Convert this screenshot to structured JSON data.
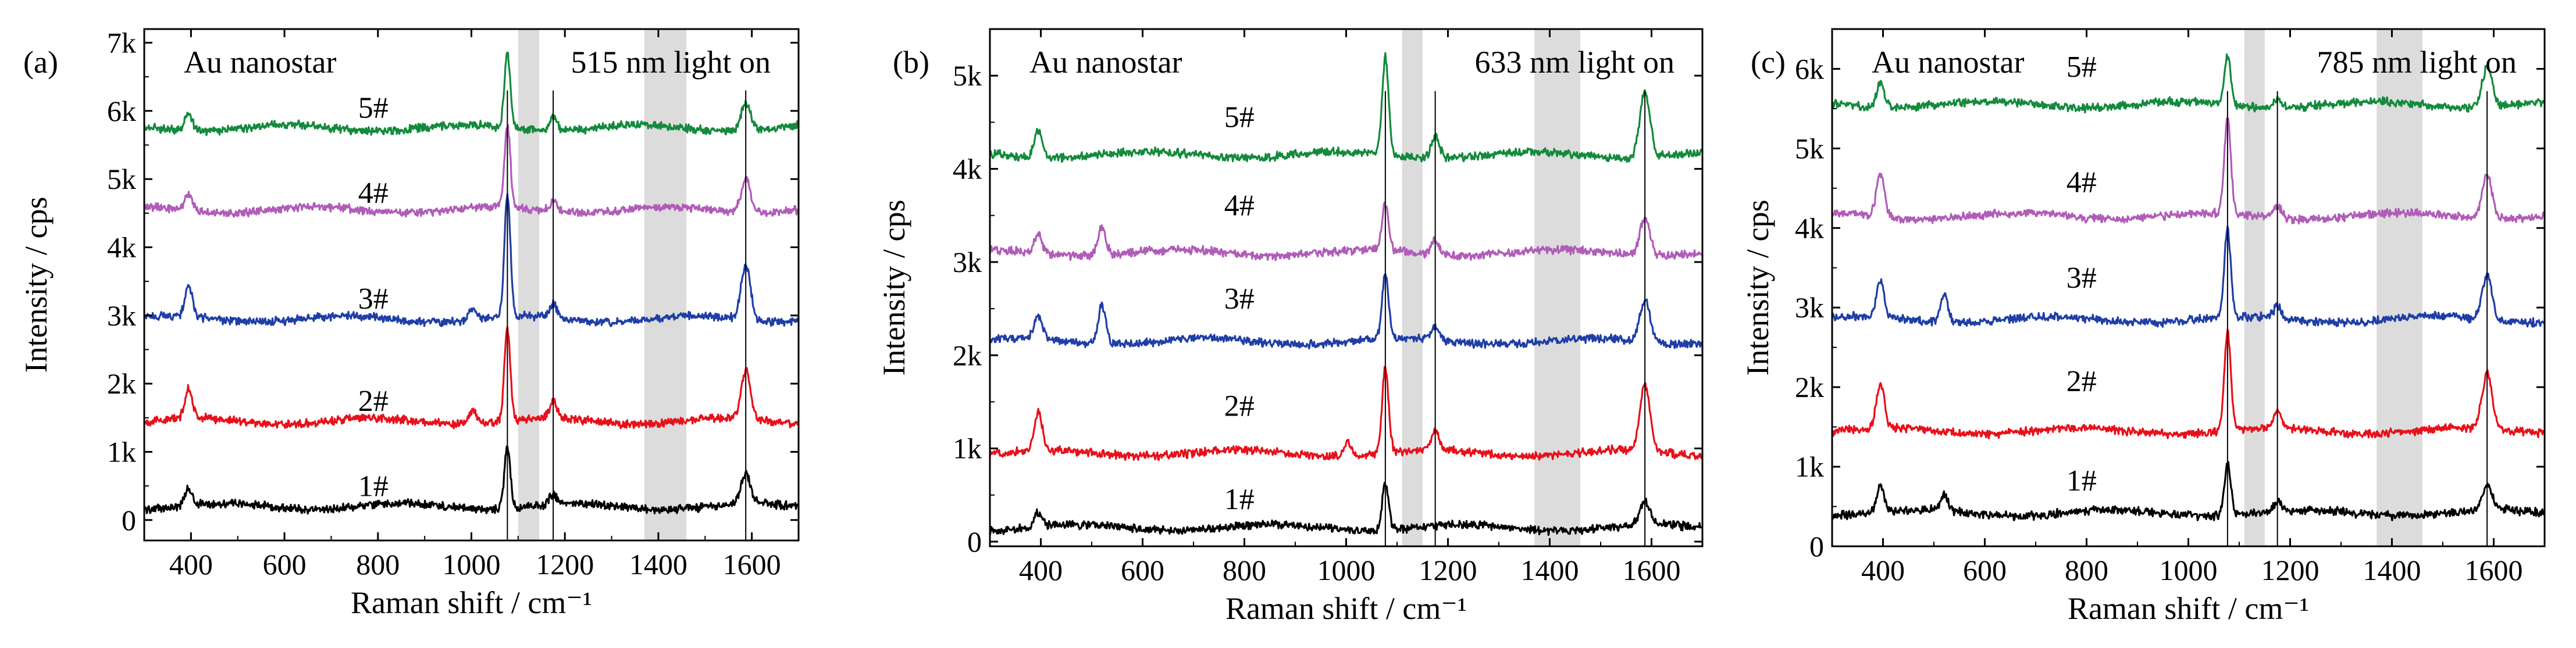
{
  "figure": {
    "xlabel": "Raman shift / cm⁻¹",
    "ylabel": "Intensity / cps"
  },
  "colors": {
    "1#": "#000000",
    "2#": "#e8101a",
    "3#": "#1f3ea6",
    "4#": "#b05cb8",
    "5#": "#138a3c",
    "band": "#dcdcdc"
  },
  "chart_data": [
    {
      "type": "line",
      "panel_label": "(a)",
      "material": "Au nanostar",
      "condition": "515 nm light on",
      "xlim": [
        300,
        1700
      ],
      "ylim": [
        -300,
        7200
      ],
      "xticks": [
        400,
        600,
        800,
        1000,
        1200,
        1400,
        1600
      ],
      "yticks": [
        0,
        1000,
        2000,
        3000,
        4000,
        5000,
        6000,
        7000
      ],
      "ytick_labels": [
        "0",
        "1k",
        "2k",
        "3k",
        "4k",
        "5k",
        "6k",
        "7k"
      ],
      "xtick_labels": [
        "400",
        "600",
        "800",
        "1000",
        "1200",
        "1400",
        "1600"
      ],
      "reference_lines": [
        1077,
        1175,
        1587
      ],
      "shaded_bands": [
        [
          1100,
          1145
        ],
        [
          1370,
          1460
        ]
      ],
      "series": [
        {
          "name": "1#",
          "baseline": 200,
          "peaks": [
            [
              395,
              250
            ],
            [
              1077,
              900
            ],
            [
              1175,
              150
            ],
            [
              1587,
              450
            ]
          ]
        },
        {
          "name": "2#",
          "baseline": 1450,
          "peaks": [
            [
              395,
              450
            ],
            [
              1003,
              200
            ],
            [
              1077,
              1350
            ],
            [
              1175,
              250
            ],
            [
              1587,
              700
            ]
          ]
        },
        {
          "name": "3#",
          "baseline": 2950,
          "peaks": [
            [
              395,
              450
            ],
            [
              1003,
              150
            ],
            [
              1077,
              1800
            ],
            [
              1175,
              200
            ],
            [
              1587,
              800
            ]
          ]
        },
        {
          "name": "4#",
          "baseline": 4550,
          "peaks": [
            [
              395,
              250
            ],
            [
              1077,
              1200
            ],
            [
              1175,
              150
            ],
            [
              1587,
              500
            ]
          ]
        },
        {
          "name": "5#",
          "baseline": 5750,
          "peaks": [
            [
              395,
              250
            ],
            [
              1077,
              1100
            ],
            [
              1175,
              200
            ],
            [
              1587,
              400
            ]
          ]
        }
      ],
      "sample_label_y": [
        350,
        1600,
        3100,
        4650,
        5900
      ]
    },
    {
      "type": "line",
      "panel_label": "(b)",
      "material": "Au nanostar",
      "condition": "633 nm light on",
      "xlim": [
        300,
        1700
      ],
      "ylim": [
        -50,
        5500
      ],
      "xticks": [
        400,
        600,
        800,
        1000,
        1200,
        1400,
        1600
      ],
      "yticks": [
        0,
        1000,
        2000,
        3000,
        4000,
        5000
      ],
      "ytick_labels": [
        "0",
        "1k",
        "2k",
        "3k",
        "4k",
        "5k"
      ],
      "xtick_labels": [
        "400",
        "600",
        "800",
        "1000",
        "1200",
        "1400",
        "1600"
      ],
      "reference_lines": [
        1077,
        1175,
        1587
      ],
      "shaded_bands": [
        [
          1110,
          1150
        ],
        [
          1370,
          1460
        ]
      ],
      "series": [
        {
          "name": "1#",
          "baseline": 150,
          "peaks": [
            [
              395,
              150
            ],
            [
              1077,
              500
            ],
            [
              1587,
              250
            ]
          ]
        },
        {
          "name": "2#",
          "baseline": 950,
          "peaks": [
            [
              395,
              400
            ],
            [
              1003,
              150
            ],
            [
              1077,
              900
            ],
            [
              1175,
              200
            ],
            [
              1587,
              700
            ]
          ]
        },
        {
          "name": "3#",
          "baseline": 2150,
          "peaks": [
            [
              395,
              250
            ],
            [
              520,
              400
            ],
            [
              1077,
              700
            ],
            [
              1175,
              150
            ],
            [
              1587,
              450
            ]
          ]
        },
        {
          "name": "4#",
          "baseline": 3100,
          "peaks": [
            [
              395,
              200
            ],
            [
              520,
              300
            ],
            [
              1077,
              500
            ],
            [
              1175,
              150
            ],
            [
              1587,
              400
            ]
          ]
        },
        {
          "name": "5#",
          "baseline": 4150,
          "peaks": [
            [
              395,
              300
            ],
            [
              1077,
              1050
            ],
            [
              1175,
              250
            ],
            [
              1587,
              700
            ]
          ]
        }
      ],
      "sample_label_y": [
        350,
        1350,
        2500,
        3500,
        4450
      ]
    },
    {
      "type": "line",
      "panel_label": "(c)",
      "material": "Au nanostar",
      "condition": "785 nm light on",
      "xlim": [
        300,
        1700
      ],
      "ylim": [
        0,
        6500
      ],
      "xticks": [
        400,
        600,
        800,
        1000,
        1200,
        1400,
        1600
      ],
      "yticks": [
        0,
        1000,
        2000,
        3000,
        4000,
        5000,
        6000
      ],
      "ytick_labels": [
        "0",
        "1k",
        "2k",
        "3k",
        "4k",
        "5k",
        "6k"
      ],
      "xtick_labels": [
        "400",
        "600",
        "800",
        "1000",
        "1200",
        "1400",
        "1600"
      ],
      "reference_lines": [
        1077,
        1175,
        1587
      ],
      "shaded_bands": [
        [
          1110,
          1150
        ],
        [
          1370,
          1460
        ]
      ],
      "series": [
        {
          "name": "1#",
          "baseline": 420,
          "peaks": [
            [
              395,
              300
            ],
            [
              520,
              200
            ],
            [
              1077,
              650
            ],
            [
              1175,
              100
            ],
            [
              1587,
              300
            ]
          ]
        },
        {
          "name": "2#",
          "baseline": 1450,
          "peaks": [
            [
              395,
              550
            ],
            [
              1077,
              1250
            ],
            [
              1175,
              200
            ],
            [
              1587,
              700
            ]
          ]
        },
        {
          "name": "3#",
          "baseline": 2850,
          "peaks": [
            [
              395,
              450
            ],
            [
              520,
              350
            ],
            [
              1077,
              1100
            ],
            [
              1175,
              150
            ],
            [
              1587,
              550
            ]
          ]
        },
        {
          "name": "4#",
          "baseline": 4150,
          "peaks": [
            [
              395,
              550
            ],
            [
              1077,
              1200
            ],
            [
              1175,
              150
            ],
            [
              1587,
              550
            ]
          ]
        },
        {
          "name": "5#",
          "baseline": 5550,
          "peaks": [
            [
              395,
              300
            ],
            [
              1077,
              600
            ],
            [
              1175,
              100
            ],
            [
              1587,
              500
            ]
          ]
        }
      ],
      "sample_label_y": [
        700,
        1950,
        3250,
        4450,
        5900
      ]
    }
  ]
}
